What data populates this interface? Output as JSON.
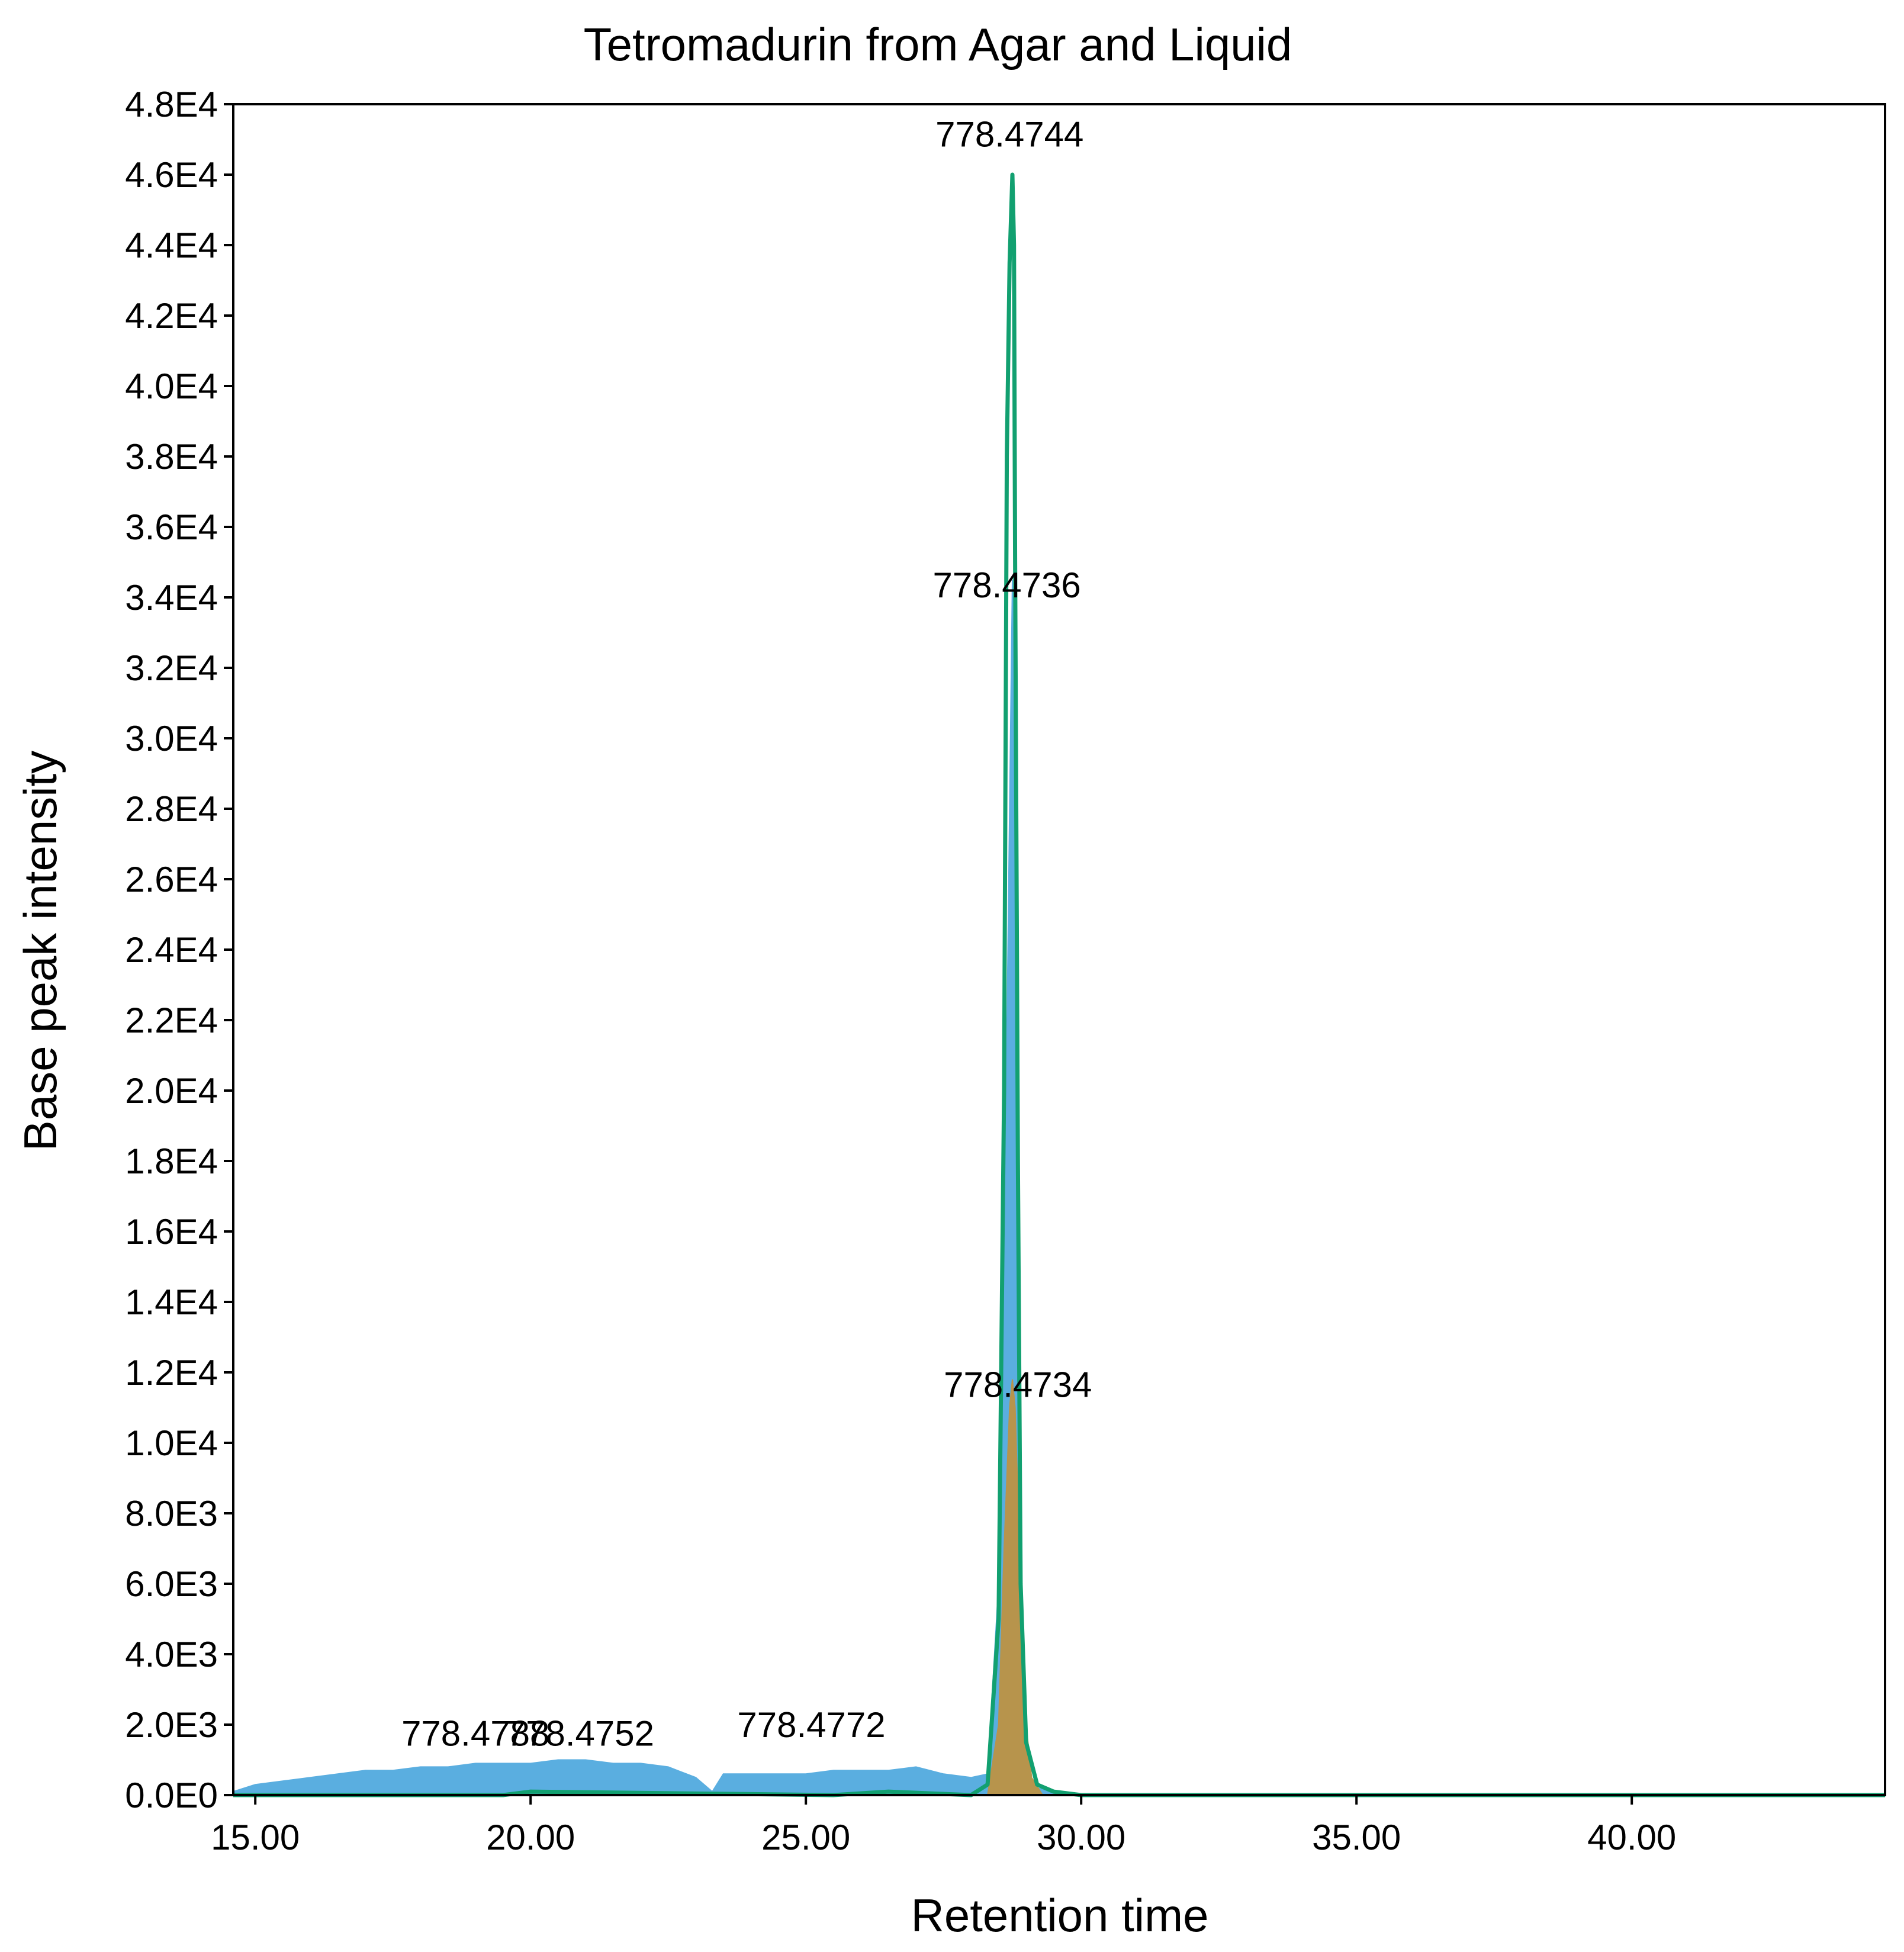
{
  "chart_data": {
    "type": "area",
    "title": "Tetromadurin from Agar and Liquid",
    "xlabel": "Retention time",
    "ylabel": "Base peak intensity",
    "xlim": [
      14.6,
      44.6
    ],
    "ylim": [
      0,
      48000
    ],
    "grid": false,
    "legend": "none",
    "x_ticks": [
      15,
      20,
      25,
      30,
      35,
      40
    ],
    "x_tick_labels": [
      "15.00",
      "20.00",
      "25.00",
      "30.00",
      "35.00",
      "40.00"
    ],
    "y_ticks": [
      0,
      2000,
      4000,
      6000,
      8000,
      10000,
      12000,
      14000,
      16000,
      18000,
      20000,
      22000,
      24000,
      26000,
      28000,
      30000,
      32000,
      34000,
      36000,
      38000,
      40000,
      42000,
      44000,
      46000,
      48000
    ],
    "y_tick_labels": [
      "0.0E0",
      "2.0E3",
      "4.0E3",
      "6.0E3",
      "8.0E3",
      "1.0E4",
      "1.2E4",
      "1.4E4",
      "1.6E4",
      "1.8E4",
      "2.0E4",
      "2.2E4",
      "2.4E4",
      "2.6E4",
      "2.8E4",
      "3.0E4",
      "3.2E4",
      "3.4E4",
      "3.6E4",
      "3.8E4",
      "4.0E4",
      "4.2E4",
      "4.4E4",
      "4.6E4",
      "4.8E4"
    ],
    "series": [
      {
        "color": "#5aaee0",
        "style": "filled",
        "x": [
          14.6,
          15.0,
          15.5,
          16.0,
          16.5,
          17.0,
          17.5,
          18.0,
          18.5,
          19.0,
          19.5,
          20.0,
          20.5,
          21.0,
          21.5,
          22.0,
          22.5,
          23.0,
          23.3,
          23.5,
          24.0,
          24.5,
          25.0,
          25.5,
          26.0,
          26.5,
          27.0,
          27.5,
          28.0,
          28.3,
          28.5,
          28.6,
          28.7,
          28.75,
          28.8,
          28.85,
          28.9,
          29.0,
          29.2,
          29.5,
          30.0,
          30.5,
          44.6
        ],
        "y": [
          100,
          300,
          400,
          500,
          600,
          700,
          700,
          800,
          800,
          900,
          900,
          900,
          1000,
          1000,
          900,
          900,
          800,
          500,
          100,
          600,
          600,
          600,
          600,
          700,
          700,
          700,
          800,
          600,
          500,
          600,
          6000,
          15000,
          28000,
          34500,
          30000,
          15000,
          3000,
          500,
          200,
          100,
          0,
          0,
          0
        ]
      },
      {
        "color": "#b7944c",
        "style": "filled",
        "x": [
          28.3,
          28.5,
          28.6,
          28.7,
          28.75,
          28.8,
          28.9,
          29.0,
          29.1,
          29.3
        ],
        "y": [
          0,
          2000,
          7000,
          11000,
          11800,
          11000,
          6000,
          2000,
          500,
          0
        ]
      },
      {
        "color": "#12a070",
        "style": "line",
        "x": [
          14.6,
          19.5,
          20.0,
          25.5,
          26.5,
          28.0,
          28.3,
          28.5,
          28.6,
          28.65,
          28.7,
          28.75,
          28.78,
          28.8,
          28.85,
          28.9,
          29.0,
          29.2,
          29.5,
          30.0,
          44.6
        ],
        "y": [
          0,
          0,
          100,
          0,
          100,
          0,
          300,
          5000,
          20000,
          38000,
          43500,
          46000,
          44000,
          35000,
          18000,
          6000,
          1500,
          300,
          100,
          0,
          0
        ]
      }
    ],
    "annotations": [
      {
        "text": "778.4744",
        "x": 28.7,
        "y": 46800
      },
      {
        "text": "778.4736",
        "x": 28.65,
        "y": 34000
      },
      {
        "text": "778.4734",
        "x": 28.85,
        "y": 11300
      },
      {
        "text": "778.4788",
        "x": 19.0,
        "y": 1400
      },
      {
        "text": "778.4752",
        "x": 20.9,
        "y": 1400
      },
      {
        "text": "778.4772",
        "x": 25.1,
        "y": 1650
      }
    ]
  }
}
